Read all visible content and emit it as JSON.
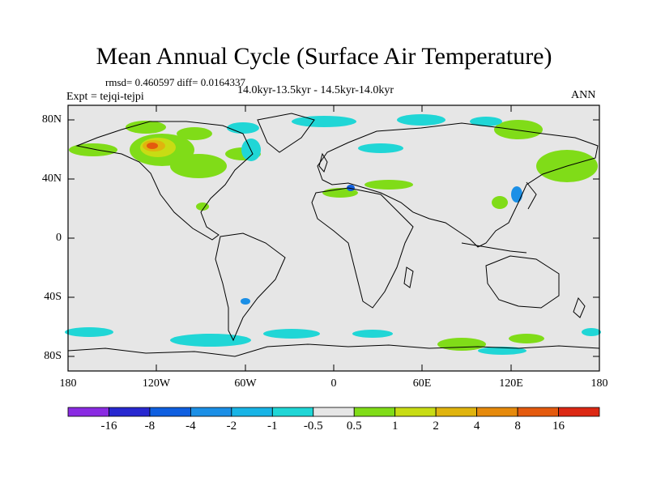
{
  "header": {
    "title": "Mean Annual Cycle (Surface Air Temperature)",
    "stats": "rmsd= 0.460597 diff= 0.0164337",
    "expt": "Expt = tejqi-tejpi",
    "period": "14.0kyr-13.5kyr - 14.5kyr-14.0kyr",
    "season": "ANN"
  },
  "axes": {
    "y_ticks": [
      "80N",
      "40N",
      "0",
      "40S",
      "80S"
    ],
    "x_ticks": [
      "180",
      "120W",
      "60W",
      "0",
      "60E",
      "120E",
      "180"
    ],
    "lon_range": [
      -180,
      180
    ],
    "lat_range": [
      -90,
      90
    ]
  },
  "colorbar": {
    "labels": [
      "-16",
      "-8",
      "-4",
      "-2",
      "-1",
      "-0.5",
      "0.5",
      "1",
      "2",
      "4",
      "8",
      "16"
    ],
    "colors": [
      "#8a2be2",
      "#2828d0",
      "#0f5fe0",
      "#1b8fe6",
      "#18b4e6",
      "#20d6d6",
      "#e6e6e6",
      "#80dc18",
      "#c8dc14",
      "#e0b40e",
      "#e68a0c",
      "#e45a0e",
      "#dc2814"
    ]
  },
  "map": {
    "background_color": "#e6e6e6"
  }
}
